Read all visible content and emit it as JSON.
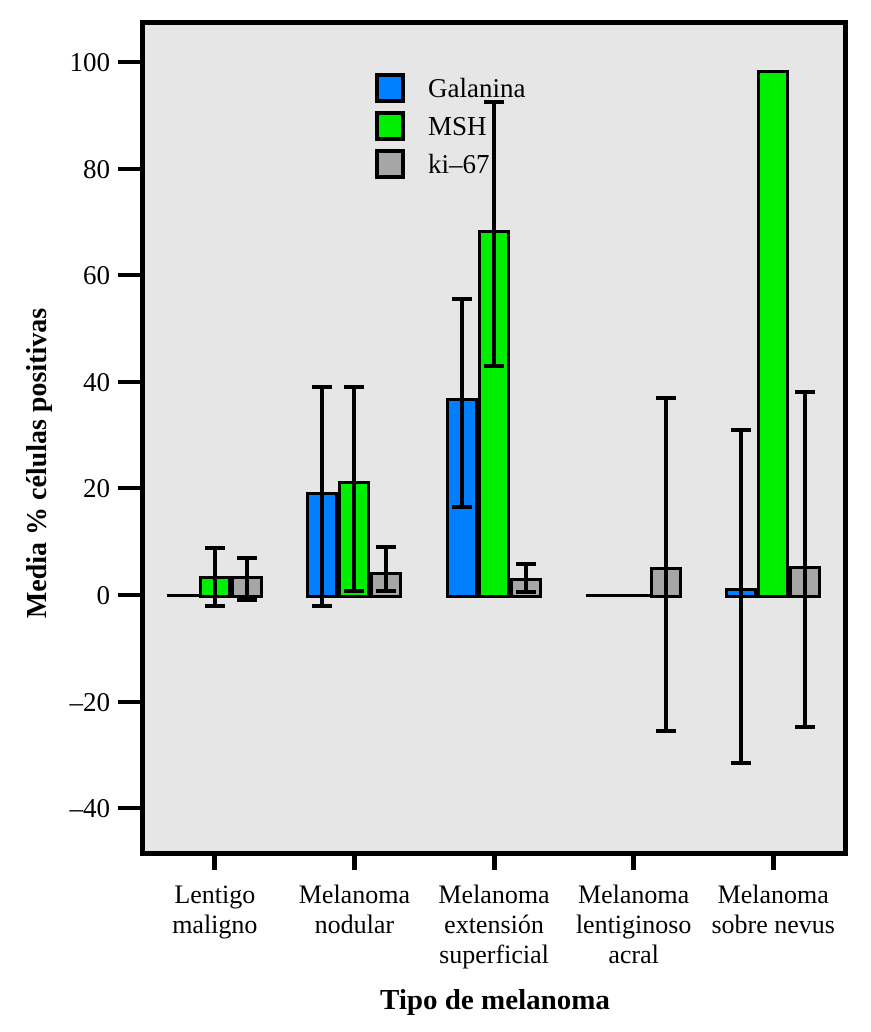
{
  "figure": {
    "background": "#ffffff",
    "plot_background": "#e6e6e6",
    "frame_color": "#000000"
  },
  "chart_data": {
    "type": "bar",
    "title": "",
    "xlabel": "Tipo de melanoma",
    "ylabel": "Media % células positivas",
    "grid": false,
    "legend_position": "top-left-inside",
    "ylim": [
      -48,
      107
    ],
    "y_ticks": [
      100,
      80,
      60,
      40,
      20,
      0,
      -20,
      -40
    ],
    "y_tick_labels": [
      "100",
      "80",
      "60",
      "40",
      "20",
      "0",
      "–20",
      "–40"
    ],
    "categories": [
      "Lentigo maligno",
      "Melanoma nodular",
      "Melanoma extensión superficial",
      "Melanoma lentiginoso acral",
      "Melanoma sobre nevus"
    ],
    "category_lines": [
      [
        "Lentigo",
        "maligno"
      ],
      [
        "Melanoma",
        "nodular"
      ],
      [
        "Melanoma",
        "extensión",
        "superficial"
      ],
      [
        "Melanoma",
        "lentiginoso",
        "acral"
      ],
      [
        "Melanoma",
        "sobre nevus"
      ]
    ],
    "series": [
      {
        "name": "Galanina",
        "color": "#0080ff",
        "values": [
          0,
          19.3,
          37,
          0,
          1.3
        ],
        "error_low": [
          null,
          -2,
          16.5,
          null,
          -31.5
        ],
        "error_high": [
          null,
          39,
          55.5,
          null,
          31
        ]
      },
      {
        "name": "MSH",
        "color": "#00ee00",
        "values": [
          3.5,
          21.3,
          68.5,
          0,
          98.5
        ],
        "error_low": [
          -2,
          0.7,
          43,
          null,
          null
        ],
        "error_high": [
          8.8,
          39,
          92.5,
          null,
          null
        ]
      },
      {
        "name": "ki–67",
        "color": "#a6a6a6",
        "values": [
          3.5,
          4.3,
          3.2,
          5.3,
          5.5
        ],
        "error_low": [
          -1,
          0.8,
          0.6,
          -25.5,
          -24.8
        ],
        "error_high": [
          7,
          9,
          5.8,
          37,
          38
        ]
      }
    ]
  }
}
